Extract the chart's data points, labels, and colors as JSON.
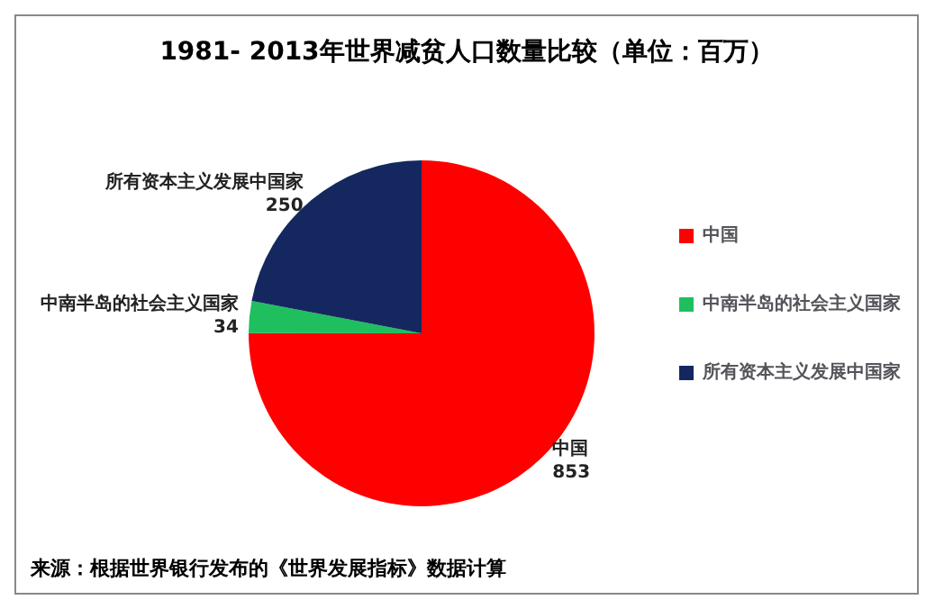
{
  "chart_data": {
    "type": "pie",
    "title": "1981- 2013年世界减贫人口数量比较（单位：百万）",
    "categories": [
      "中国",
      "中南半岛的社会主义国家",
      "所有资本主义发展中国家"
    ],
    "values": [
      853,
      34,
      250
    ],
    "colors": [
      "#ff0000",
      "#1fbf5f",
      "#14285f"
    ],
    "data_labels": true,
    "legend": "right",
    "annotations": [
      "来源：根据世界银行发布的《世界发展指标》数据计算"
    ]
  }
}
